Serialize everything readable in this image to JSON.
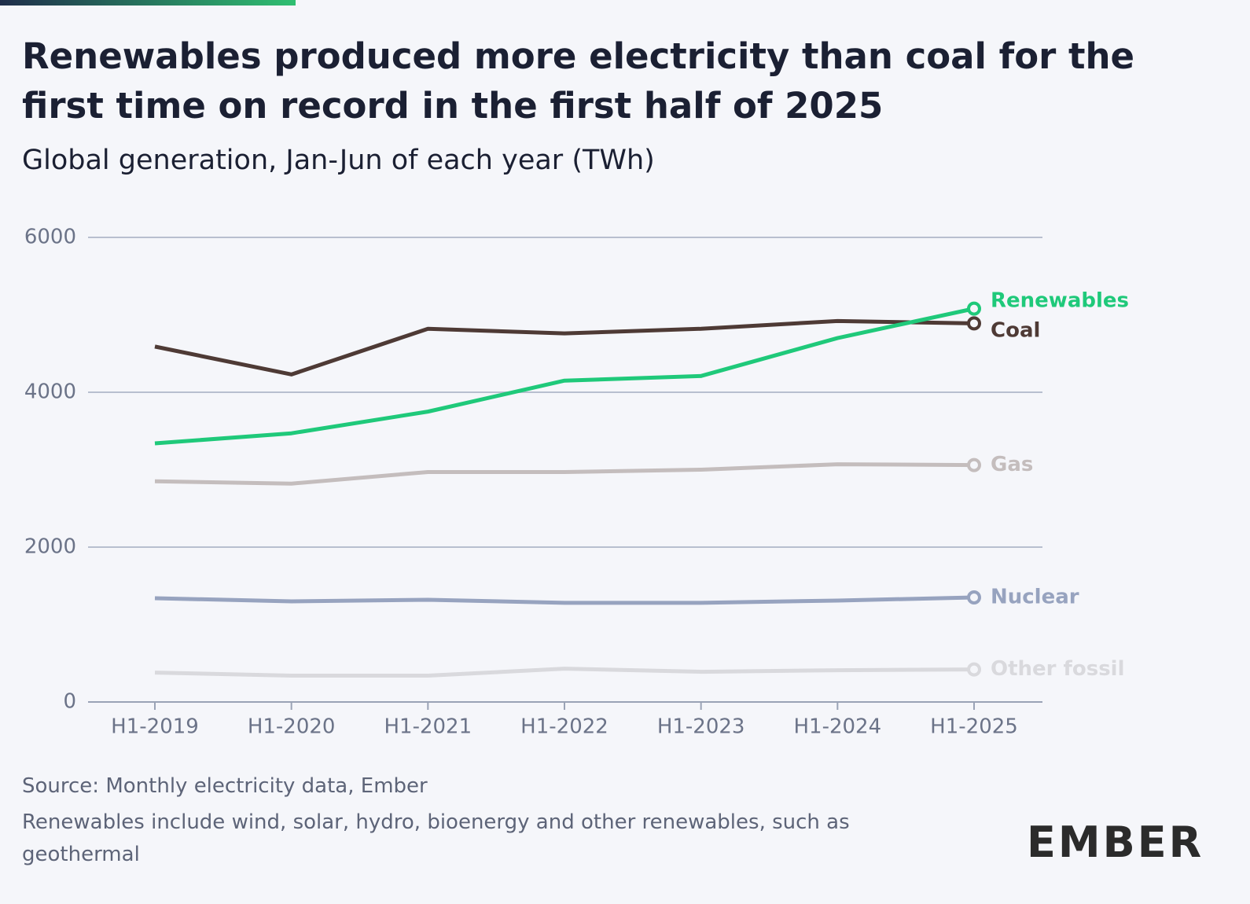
{
  "chart_data": {
    "type": "line",
    "title": "Renewables produced more electricity than coal for the first time on record in the first half of 2025",
    "subtitle": "Global generation, Jan-Jun of each year (TWh)",
    "categories": [
      "H1-2019",
      "H1-2020",
      "H1-2021",
      "H1-2022",
      "H1-2023",
      "H1-2024",
      "H1-2025"
    ],
    "series": [
      {
        "name": "Coal",
        "color": "#4e3a35",
        "values": [
          4590,
          4230,
          4820,
          4760,
          4820,
          4920,
          4890
        ]
      },
      {
        "name": "Renewables",
        "color": "#1fc97a",
        "values": [
          3340,
          3470,
          3750,
          4150,
          4210,
          4700,
          5080
        ]
      },
      {
        "name": "Gas",
        "color": "#c4bdbd",
        "values": [
          2850,
          2820,
          2970,
          2970,
          3000,
          3070,
          3060
        ]
      },
      {
        "name": "Nuclear",
        "color": "#97a3bf",
        "values": [
          1340,
          1300,
          1320,
          1280,
          1280,
          1310,
          1350
        ]
      },
      {
        "name": "Other fossil",
        "color": "#d9d9dd",
        "values": [
          380,
          340,
          340,
          430,
          390,
          410,
          420
        ]
      }
    ],
    "ylim": [
      0,
      6000
    ],
    "yticks": [
      0,
      2000,
      4000,
      6000
    ],
    "grid": true,
    "source": "Source: Monthly electricity data, Ember",
    "note": "Renewables include wind, solar, hydro, bioenergy and other renewables, such as geothermal",
    "logo": "EMBER"
  }
}
